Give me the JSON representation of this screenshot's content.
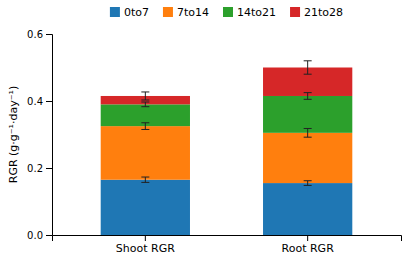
{
  "chart_data": {
    "type": "bar",
    "stacked": true,
    "categories": [
      "Shoot RGR",
      "Root RGR"
    ],
    "series": [
      {
        "name": "0to7",
        "values": [
          0.165,
          0.155
        ],
        "errors": [
          0.008,
          0.007
        ]
      },
      {
        "name": "7to14",
        "values": [
          0.16,
          0.15
        ],
        "errors": [
          0.01,
          0.013
        ]
      },
      {
        "name": "14to21",
        "values": [
          0.065,
          0.11
        ],
        "errors": [
          0.007,
          0.01
        ]
      },
      {
        "name": "21to28",
        "values": [
          0.025,
          0.085
        ],
        "errors": [
          0.012,
          0.02
        ]
      }
    ],
    "ylabel": "RGR (g·g⁻¹·day⁻¹)",
    "ylim": [
      0.0,
      0.6
    ],
    "yticks": [
      {
        "value": 0.0,
        "label": "0.0"
      },
      0.2,
      0.4,
      0.6
    ],
    "grid": false,
    "legend": "top"
  }
}
